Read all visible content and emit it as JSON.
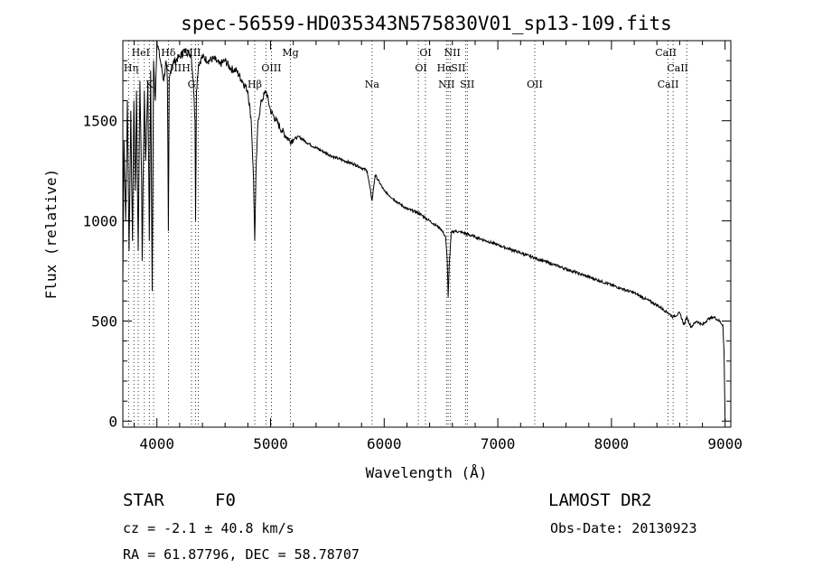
{
  "chart_data": {
    "type": "line",
    "title": "spec-56559-HD035343N575830V01_sp13-109.fits",
    "xlabel": "Wavelength (Å)",
    "ylabel": "Flux (relative)",
    "xlim": [
      3700,
      9050
    ],
    "ylim": [
      -30,
      1900
    ],
    "xticks": [
      4000,
      5000,
      6000,
      7000,
      8000,
      9000
    ],
    "yticks": [
      0,
      500,
      1000,
      1500
    ],
    "series": [
      {
        "name": "flux",
        "x": [
          3700,
          3710,
          3725,
          3740,
          3755,
          3770,
          3785,
          3797,
          3810,
          3820,
          3835,
          3850,
          3865,
          3870,
          3889,
          3900,
          3920,
          3933,
          3945,
          3958,
          3970,
          3985,
          4000,
          4030,
          4060,
          4080,
          4092,
          4101,
          4108,
          4130,
          4160,
          4200,
          4250,
          4300,
          4320,
          4335,
          4340,
          4348,
          4365,
          4400,
          4450,
          4500,
          4550,
          4600,
          4650,
          4700,
          4750,
          4800,
          4830,
          4850,
          4861,
          4872,
          4890,
          4920,
          4960,
          5000,
          5050,
          5100,
          5170,
          5250,
          5350,
          5450,
          5550,
          5650,
          5750,
          5850,
          5893,
          5920,
          6000,
          6100,
          6200,
          6300,
          6400,
          6450,
          6500,
          6540,
          6555,
          6563,
          6572,
          6590,
          6620,
          6700,
          6800,
          6900,
          7000,
          7100,
          7200,
          7300,
          7400,
          7500,
          7600,
          7700,
          7800,
          7900,
          8000,
          8100,
          8200,
          8300,
          8400,
          8500,
          8542,
          8600,
          8640,
          8662,
          8700,
          8750,
          8800,
          8850,
          8900,
          8950,
          8980,
          8990,
          9000
        ],
        "y": [
          700,
          1400,
          1000,
          1600,
          850,
          1550,
          900,
          1600,
          1150,
          1650,
          850,
          1700,
          1200,
          800,
          1650,
          1300,
          1700,
          900,
          1750,
          650,
          1800,
          1600,
          1900,
          1800,
          1700,
          1800,
          1700,
          950,
          1700,
          1780,
          1800,
          1820,
          1850,
          1830,
          1700,
          1500,
          1000,
          1650,
          1780,
          1820,
          1800,
          1810,
          1780,
          1800,
          1760,
          1750,
          1700,
          1650,
          1500,
          1200,
          900,
          1250,
          1500,
          1600,
          1650,
          1550,
          1500,
          1450,
          1400,
          1420,
          1380,
          1350,
          1320,
          1300,
          1280,
          1250,
          1100,
          1230,
          1150,
          1100,
          1060,
          1040,
          1000,
          980,
          960,
          920,
          800,
          620,
          780,
          940,
          950,
          940,
          920,
          900,
          880,
          860,
          840,
          820,
          800,
          780,
          760,
          740,
          720,
          700,
          680,
          660,
          640,
          610,
          580,
          540,
          520,
          540,
          480,
          520,
          470,
          500,
          480,
          510,
          520,
          500,
          480,
          350,
          0
        ]
      }
    ],
    "line_markers": [
      {
        "name": "HeI",
        "wl": 3889,
        "row": 0,
        "dx": -4
      },
      {
        "name": "Hδ",
        "wl": 4101,
        "row": 0,
        "dx": 0
      },
      {
        "name": "OIII",
        "wl": 4363,
        "row": 0,
        "dx": -8
      },
      {
        "name": "Mg",
        "wl": 5175,
        "row": 0,
        "dx": 0
      },
      {
        "name": "OI",
        "wl": 6300,
        "row": 0,
        "dx": 8
      },
      {
        "name": "NII",
        "wl": 6583,
        "row": 0,
        "dx": 2
      },
      {
        "name": "CaII",
        "wl": 8542,
        "row": 0,
        "dx": -8
      },
      {
        "name": "Hη",
        "wl": 3835,
        "row": 1,
        "dx": -8
      },
      {
        "name": "OII",
        "wl": 4068,
        "row": 1,
        "dx": 10
      },
      {
        "name": "H",
        "wl": 3970,
        "row": 1,
        "dx": 36
      },
      {
        "name": "OIII",
        "wl": 5007,
        "row": 1,
        "dx": 0
      },
      {
        "name": "OI",
        "wl": 6363,
        "row": 1,
        "dx": -5
      },
      {
        "name": "Hα",
        "wl": 6563,
        "row": 1,
        "dx": -4
      },
      {
        "name": "SII",
        "wl": 6716,
        "row": 1,
        "dx": -8
      },
      {
        "name": "CaII",
        "wl": 8662,
        "row": 1,
        "dx": -10
      },
      {
        "name": "K",
        "wl": 3933,
        "row": 2,
        "dx": 0
      },
      {
        "name": "G",
        "wl": 4304,
        "row": 2,
        "dx": 0
      },
      {
        "name": "Hβ",
        "wl": 4861,
        "row": 2,
        "dx": 0
      },
      {
        "name": "Na",
        "wl": 5893,
        "row": 2,
        "dx": 0
      },
      {
        "name": "NII",
        "wl": 6548,
        "row": 2,
        "dx": 0
      },
      {
        "name": "SII",
        "wl": 6731,
        "row": 2,
        "dx": 0
      },
      {
        "name": "OII",
        "wl": 7325,
        "row": 2,
        "dx": 0
      },
      {
        "name": "CaII",
        "wl": 8498,
        "row": 2,
        "dx": 0
      }
    ],
    "marker_lines": [
      3700,
      3750,
      3797,
      3835,
      3889,
      3933,
      3970,
      4101,
      4304,
      4340,
      4363,
      4861,
      4959,
      5007,
      5175,
      5893,
      6300,
      6363,
      6548,
      6563,
      6583,
      6716,
      6731,
      7325,
      8498,
      8542,
      8662
    ]
  },
  "info": {
    "object_class": "STAR",
    "subclass": "F0",
    "survey": "LAMOST DR2",
    "redshift": "cz = -2.1 ± 40.8 km/s",
    "obs_date": "Obs-Date: 20130923",
    "coords": "RA =  61.87796, DEC =  58.78707"
  }
}
